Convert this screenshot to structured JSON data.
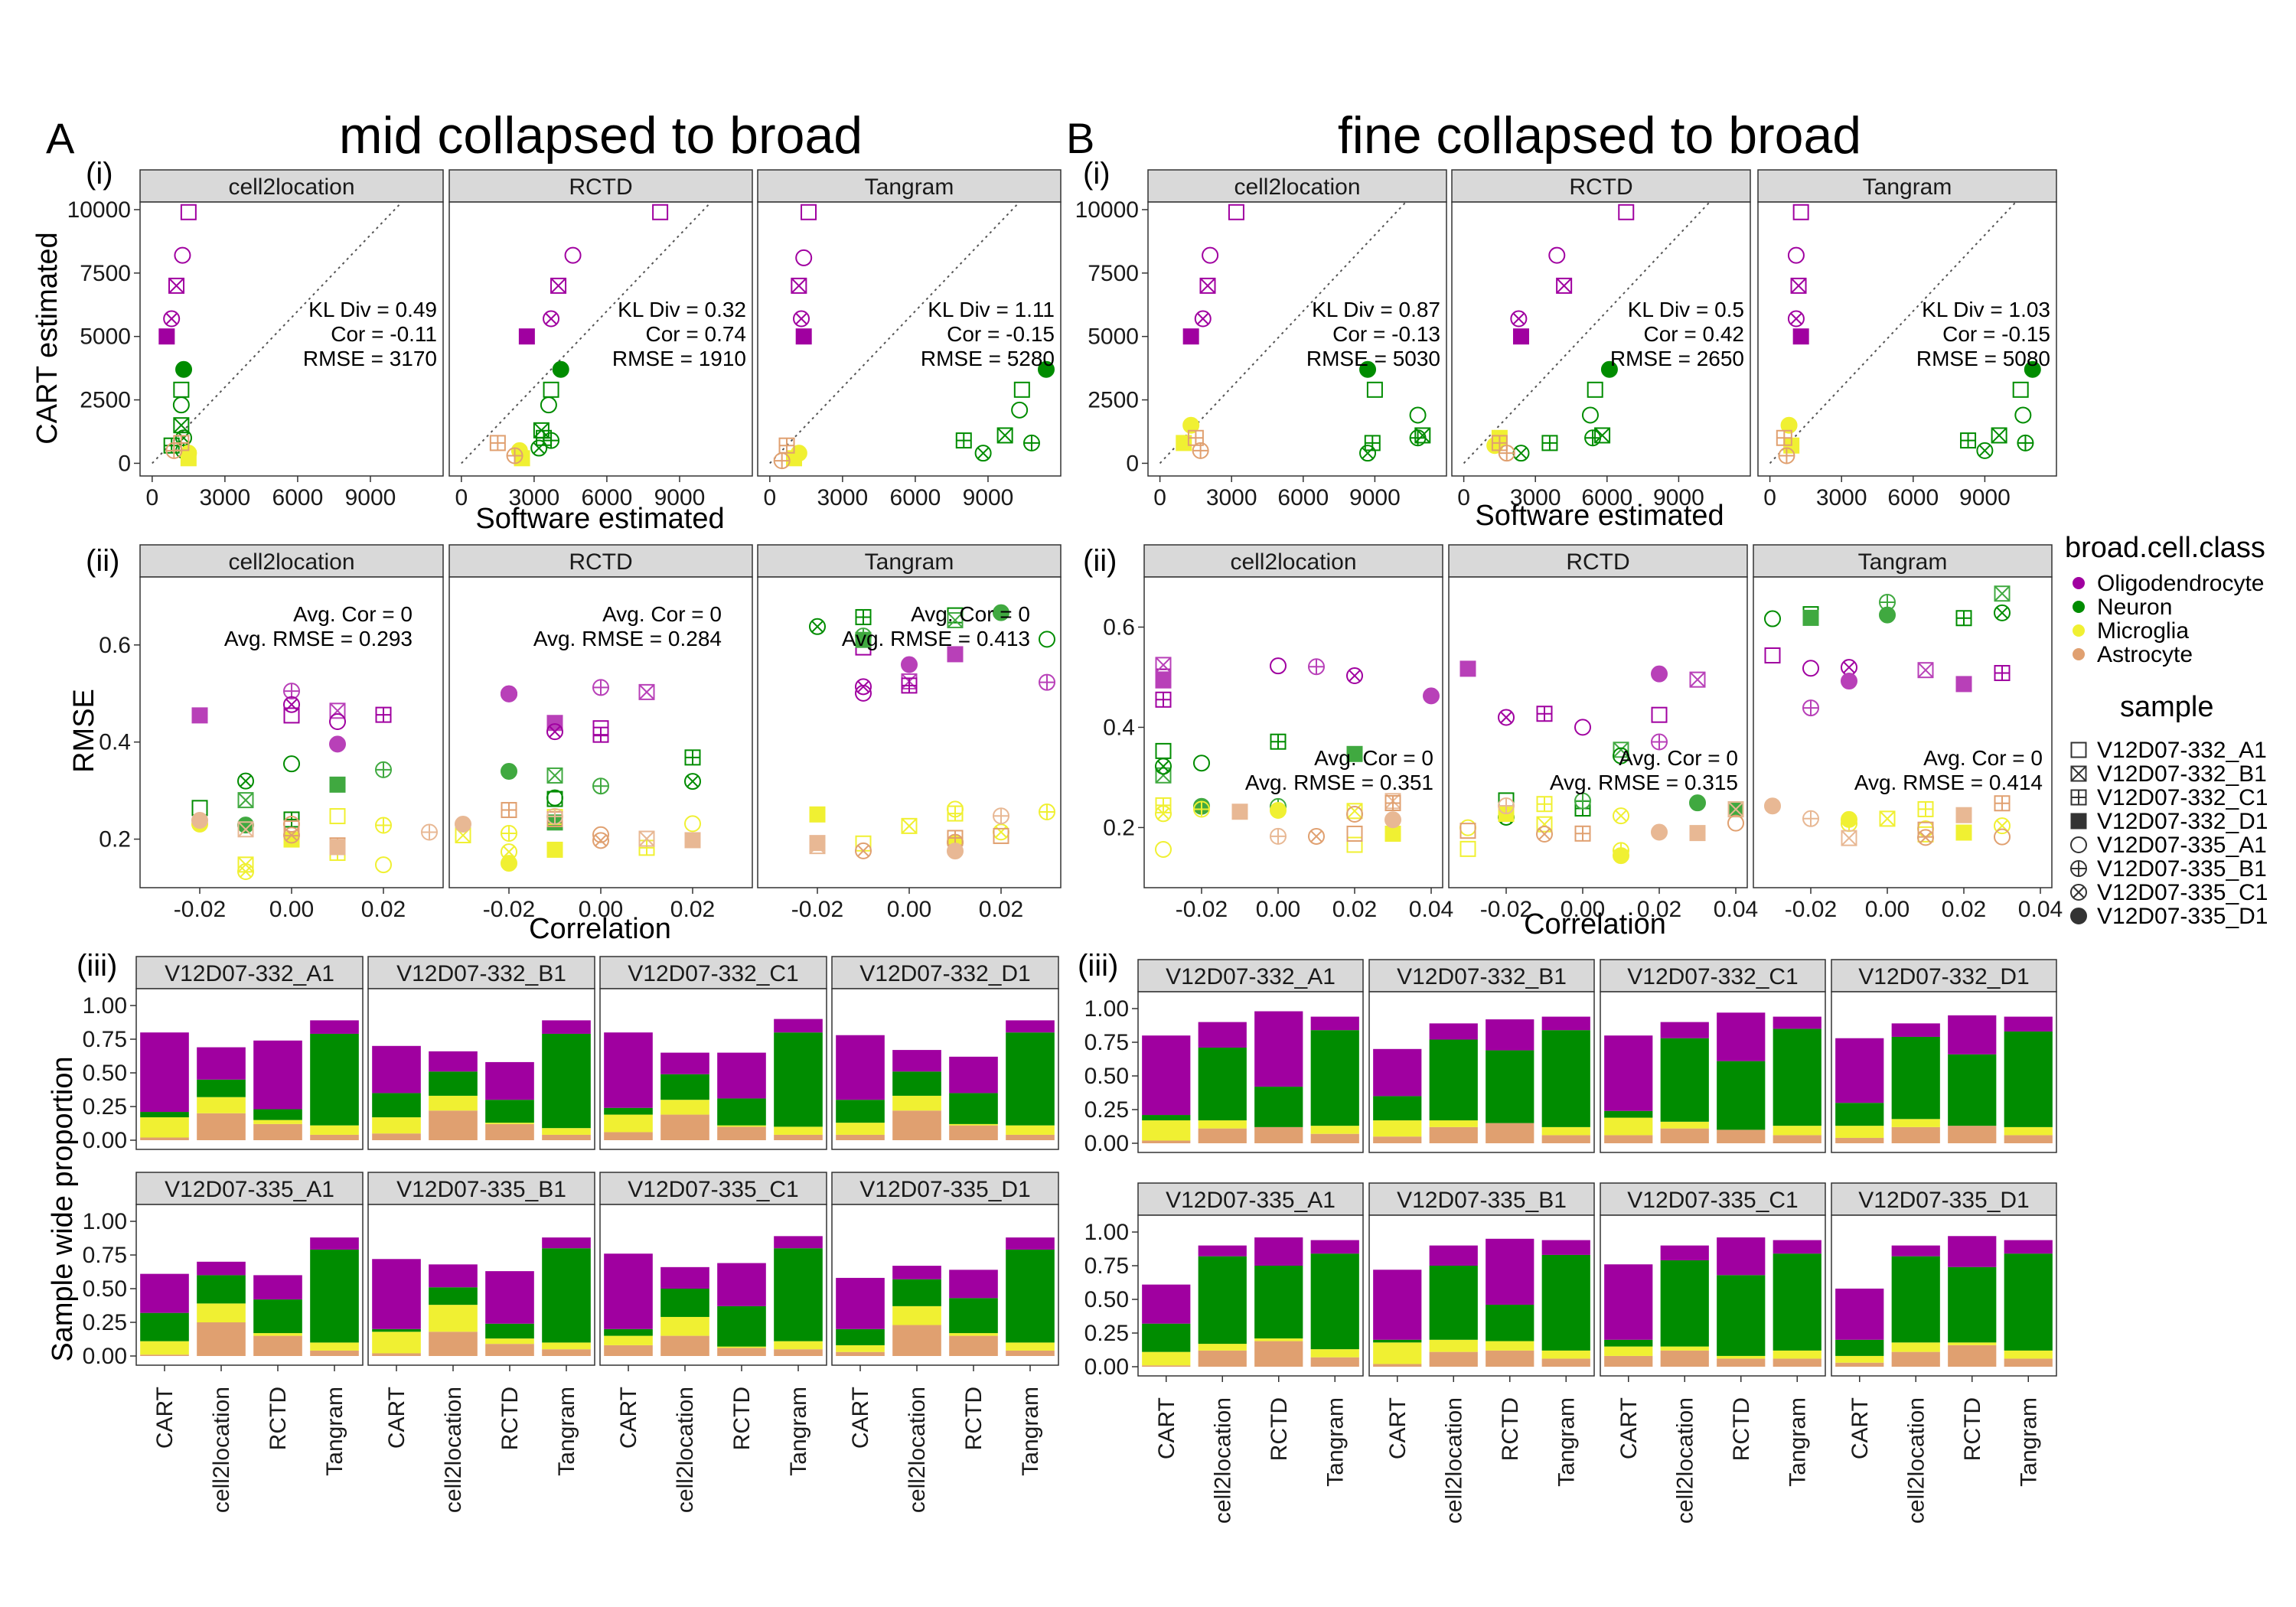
{
  "colors": {
    "Oligodendrocyte": "#a000a0",
    "Neuron": "#008c00",
    "Microglia": "#f0f032",
    "Astrocyte": "#e0a070"
  },
  "panels": {
    "A": {
      "letter": "A",
      "title": "mid collapsed to broad"
    },
    "B": {
      "letter": "B",
      "title": "fine collapsed to broad"
    }
  },
  "rows": {
    "i": "(i)",
    "ii": "(ii)",
    "iii": "(iii)"
  },
  "methods": [
    "cell2location",
    "RCTD",
    "Tangram"
  ],
  "samples": [
    "V12D07-332_A1",
    "V12D07-332_B1",
    "V12D07-332_C1",
    "V12D07-332_D1",
    "V12D07-335_A1",
    "V12D07-335_B1",
    "V12D07-335_C1",
    "V12D07-335_D1"
  ],
  "axes": {
    "scatter_x": "Software estimated",
    "scatter_y": "CART estimated",
    "rmse_x": "Correlation",
    "rmse_y": "RMSE",
    "bar_y": "Sample wide proportion"
  },
  "legend": {
    "class_title": "broad.cell.class",
    "classes": [
      "Oligodendrocyte",
      "Neuron",
      "Microglia",
      "Astrocyte"
    ],
    "sample_title": "sample"
  },
  "chart_data": [
    {
      "id": "A_i",
      "type": "scatter",
      "panel": "A",
      "row": "(i)",
      "xlabel": "Software estimated",
      "ylabel": "CART estimated",
      "xlim": [
        -500,
        12000
      ],
      "ylim": [
        -500,
        10300
      ],
      "xticks": [
        "0",
        "3000",
        "6000",
        "9000"
      ],
      "yticks": [
        "0",
        "2500",
        "5000",
        "7500",
        "10000"
      ],
      "facets": [
        {
          "facet": "cell2location",
          "stats": [
            "KL Div = 0.49",
            "Cor = -0.11",
            "RMSE = 3170"
          ]
        },
        {
          "facet": "RCTD",
          "stats": [
            "KL Div = 0.32",
            "Cor = 0.74",
            "RMSE = 1910"
          ]
        },
        {
          "facet": "Tangram",
          "stats": [
            "KL Div = 1.11",
            "Cor = -0.15",
            "RMSE = 5280"
          ]
        }
      ]
    },
    {
      "id": "B_i",
      "type": "scatter",
      "panel": "B",
      "row": "(i)",
      "xlabel": "Software estimated",
      "ylabel": "",
      "xlim": [
        -500,
        12000
      ],
      "ylim": [
        -500,
        10300
      ],
      "xticks": [
        "0",
        "3000",
        "6000",
        "9000"
      ],
      "yticks": [
        "0",
        "2500",
        "5000",
        "7500",
        "10000"
      ],
      "facets": [
        {
          "facet": "cell2location",
          "stats": [
            "KL Div = 0.87",
            "Cor = -0.13",
            "RMSE = 5030"
          ]
        },
        {
          "facet": "RCTD",
          "stats": [
            "KL Div = 0.5",
            "Cor = 0.42",
            "RMSE = 2650"
          ]
        },
        {
          "facet": "Tangram",
          "stats": [
            "KL Div = 1.03",
            "Cor = -0.15",
            "RMSE = 5080"
          ]
        }
      ]
    },
    {
      "id": "A_ii",
      "type": "scatter",
      "panel": "A",
      "row": "(ii)",
      "xlabel": "Correlation",
      "ylabel": "RMSE",
      "xlim": [
        -0.033,
        0.033
      ],
      "ylim": [
        0.1,
        0.74
      ],
      "xticks": [
        "-0.02",
        "0.00",
        "0.02"
      ],
      "yticks": [
        "0.2",
        "0.4",
        "0.6"
      ],
      "facets": [
        {
          "facet": "cell2location",
          "stats": [
            "Avg. Cor = 0",
            "Avg. RMSE = 0.293"
          ]
        },
        {
          "facet": "RCTD",
          "stats": [
            "Avg. Cor = 0",
            "Avg. RMSE = 0.284"
          ]
        },
        {
          "facet": "Tangram",
          "stats": [
            "Avg. Cor = 0",
            "Avg. RMSE = 0.413"
          ]
        }
      ]
    },
    {
      "id": "B_ii",
      "type": "scatter",
      "panel": "B",
      "row": "(ii)",
      "xlabel": "Correlation",
      "ylabel": "",
      "xlim": [
        -0.035,
        0.043
      ],
      "ylim": [
        0.08,
        0.7
      ],
      "xticks": [
        "-0.02",
        "0.00",
        "0.02",
        "0.04"
      ],
      "yticks": [
        "0.2",
        "0.4",
        "0.6"
      ],
      "facets": [
        {
          "facet": "cell2location",
          "stats": [
            "Avg. Cor = 0",
            "Avg. RMSE = 0.351"
          ]
        },
        {
          "facet": "RCTD",
          "stats": [
            "Avg. Cor = 0",
            "Avg. RMSE = 0.315"
          ]
        },
        {
          "facet": "Tangram",
          "stats": [
            "Avg. Cor = 0",
            "Avg. RMSE = 0.414"
          ]
        }
      ]
    },
    {
      "id": "A_iii",
      "type": "bar",
      "stacked": true,
      "panel": "A",
      "row": "(iii)",
      "ylabel": "Sample wide proportion",
      "ylim": [
        0,
        1.0
      ],
      "categories": [
        "CART",
        "cell2location",
        "RCTD",
        "Tangram"
      ],
      "yticks": [
        "0.00",
        "0.25",
        "0.50",
        "0.75",
        "1.00"
      ],
      "stack_order": [
        "Astrocyte",
        "Microglia",
        "Neuron",
        "Oligodendrocyte"
      ],
      "facets": [
        {
          "facet": "V12D07-332_A1",
          "values": [
            [
              0.02,
              0.15,
              0.04,
              0.59
            ],
            [
              0.2,
              0.12,
              0.13,
              0.24
            ],
            [
              0.12,
              0.03,
              0.08,
              0.51
            ],
            [
              0.04,
              0.07,
              0.68,
              0.1
            ]
          ]
        },
        {
          "facet": "V12D07-332_B1",
          "values": [
            [
              0.05,
              0.12,
              0.18,
              0.35
            ],
            [
              0.22,
              0.11,
              0.18,
              0.15
            ],
            [
              0.12,
              0.01,
              0.17,
              0.28
            ],
            [
              0.04,
              0.05,
              0.7,
              0.1
            ]
          ]
        },
        {
          "facet": "V12D07-332_C1",
          "values": [
            [
              0.06,
              0.13,
              0.05,
              0.56
            ],
            [
              0.19,
              0.11,
              0.19,
              0.16
            ],
            [
              0.1,
              0.01,
              0.2,
              0.34
            ],
            [
              0.04,
              0.06,
              0.7,
              0.1
            ]
          ]
        },
        {
          "facet": "V12D07-332_D1",
          "values": [
            [
              0.04,
              0.09,
              0.17,
              0.48
            ],
            [
              0.22,
              0.11,
              0.18,
              0.16
            ],
            [
              0.11,
              0.01,
              0.23,
              0.27
            ],
            [
              0.04,
              0.07,
              0.69,
              0.09
            ]
          ]
        },
        {
          "facet": "V12D07-335_A1",
          "values": [
            [
              0.01,
              0.1,
              0.21,
              0.29
            ],
            [
              0.25,
              0.14,
              0.21,
              0.1
            ],
            [
              0.15,
              0.02,
              0.25,
              0.18
            ],
            [
              0.04,
              0.06,
              0.69,
              0.09
            ]
          ]
        },
        {
          "facet": "V12D07-335_B1",
          "values": [
            [
              0.02,
              0.16,
              0.02,
              0.52
            ],
            [
              0.18,
              0.2,
              0.13,
              0.17
            ],
            [
              0.09,
              0.04,
              0.11,
              0.39
            ],
            [
              0.05,
              0.05,
              0.7,
              0.08
            ]
          ]
        },
        {
          "facet": "V12D07-335_C1",
          "values": [
            [
              0.08,
              0.07,
              0.05,
              0.56
            ],
            [
              0.15,
              0.14,
              0.21,
              0.16
            ],
            [
              0.06,
              0.01,
              0.3,
              0.32
            ],
            [
              0.05,
              0.06,
              0.69,
              0.09
            ]
          ]
        },
        {
          "facet": "V12D07-335_D1",
          "values": [
            [
              0.03,
              0.05,
              0.12,
              0.38
            ],
            [
              0.23,
              0.14,
              0.2,
              0.1
            ],
            [
              0.15,
              0.02,
              0.26,
              0.21
            ],
            [
              0.04,
              0.06,
              0.69,
              0.09
            ]
          ]
        }
      ]
    },
    {
      "id": "B_iii",
      "type": "bar",
      "stacked": true,
      "panel": "B",
      "row": "(iii)",
      "ylabel": "",
      "ylim": [
        0,
        1.0
      ],
      "categories": [
        "CART",
        "cell2location",
        "RCTD",
        "Tangram"
      ],
      "yticks": [
        "0.00",
        "0.25",
        "0.50",
        "0.75",
        "1.00"
      ],
      "stack_order": [
        "Astrocyte",
        "Microglia",
        "Neuron",
        "Oligodendrocyte"
      ],
      "facets": [
        {
          "facet": "V12D07-332_A1",
          "values": [
            [
              0.02,
              0.15,
              0.04,
              0.59
            ],
            [
              0.11,
              0.06,
              0.54,
              0.19
            ],
            [
              0.12,
              0.0,
              0.3,
              0.56
            ],
            [
              0.07,
              0.06,
              0.71,
              0.1
            ]
          ]
        },
        {
          "facet": "V12D07-332_B1",
          "values": [
            [
              0.05,
              0.12,
              0.18,
              0.35
            ],
            [
              0.12,
              0.05,
              0.6,
              0.12
            ],
            [
              0.15,
              0.0,
              0.54,
              0.23
            ],
            [
              0.06,
              0.06,
              0.72,
              0.1
            ]
          ]
        },
        {
          "facet": "V12D07-332_C1",
          "values": [
            [
              0.06,
              0.13,
              0.05,
              0.56
            ],
            [
              0.11,
              0.05,
              0.62,
              0.12
            ],
            [
              0.1,
              0.0,
              0.51,
              0.36
            ],
            [
              0.06,
              0.07,
              0.72,
              0.09
            ]
          ]
        },
        {
          "facet": "V12D07-332_D1",
          "values": [
            [
              0.04,
              0.09,
              0.17,
              0.48
            ],
            [
              0.12,
              0.06,
              0.61,
              0.1
            ],
            [
              0.13,
              0.0,
              0.53,
              0.29
            ],
            [
              0.06,
              0.06,
              0.71,
              0.11
            ]
          ]
        },
        {
          "facet": "V12D07-335_A1",
          "values": [
            [
              0.01,
              0.1,
              0.21,
              0.29
            ],
            [
              0.12,
              0.05,
              0.65,
              0.08
            ],
            [
              0.19,
              0.02,
              0.54,
              0.21
            ],
            [
              0.07,
              0.06,
              0.71,
              0.1
            ]
          ]
        },
        {
          "facet": "V12D07-335_B1",
          "values": [
            [
              0.02,
              0.16,
              0.02,
              0.52
            ],
            [
              0.11,
              0.09,
              0.55,
              0.15
            ],
            [
              0.12,
              0.07,
              0.27,
              0.49
            ],
            [
              0.06,
              0.06,
              0.71,
              0.11
            ]
          ]
        },
        {
          "facet": "V12D07-335_C1",
          "values": [
            [
              0.08,
              0.07,
              0.05,
              0.56
            ],
            [
              0.12,
              0.03,
              0.64,
              0.11
            ],
            [
              0.06,
              0.02,
              0.6,
              0.28
            ],
            [
              0.06,
              0.06,
              0.72,
              0.1
            ]
          ]
        },
        {
          "facet": "V12D07-335_D1",
          "values": [
            [
              0.03,
              0.05,
              0.12,
              0.38
            ],
            [
              0.11,
              0.07,
              0.64,
              0.08
            ],
            [
              0.16,
              0.02,
              0.56,
              0.23
            ],
            [
              0.06,
              0.06,
              0.72,
              0.1
            ]
          ]
        }
      ]
    }
  ]
}
